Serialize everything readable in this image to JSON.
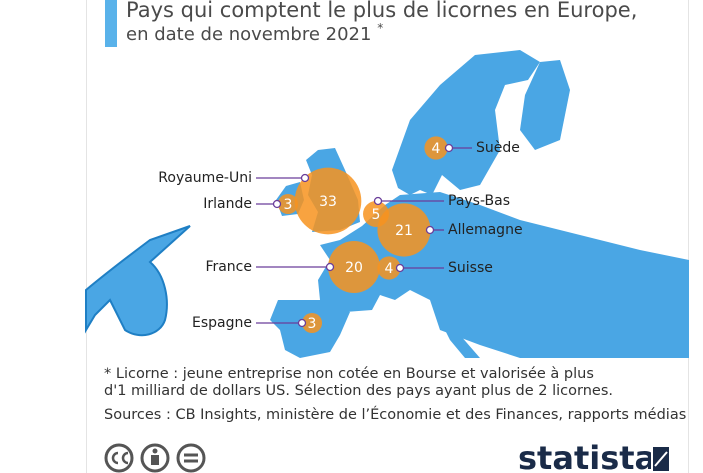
{
  "chart_data": {
    "type": "bubble-map",
    "title": [
      "Pays qui comptent le plus de licornes en Europe,",
      "en date de novembre 2021"
    ],
    "title_note": "*",
    "categories": [
      "Suède",
      "Royaume-Uni",
      "Irlande",
      "Pays-Bas",
      "Allemagne",
      "France",
      "Suisse",
      "Espagne"
    ],
    "values": [
      4,
      33,
      3,
      5,
      21,
      20,
      4,
      3
    ],
    "color": "#f7931e",
    "note": "* Licorne : jeune entreprise non cotée en Bourse et valorisée à plus d'1 milliard de dollars US. Sélection des pays ayant plus de 2 licornes.",
    "sources": "Sources : CB Insights, ministère de l’Économie et des Finances, rapports médias",
    "brand": "statista"
  }
}
